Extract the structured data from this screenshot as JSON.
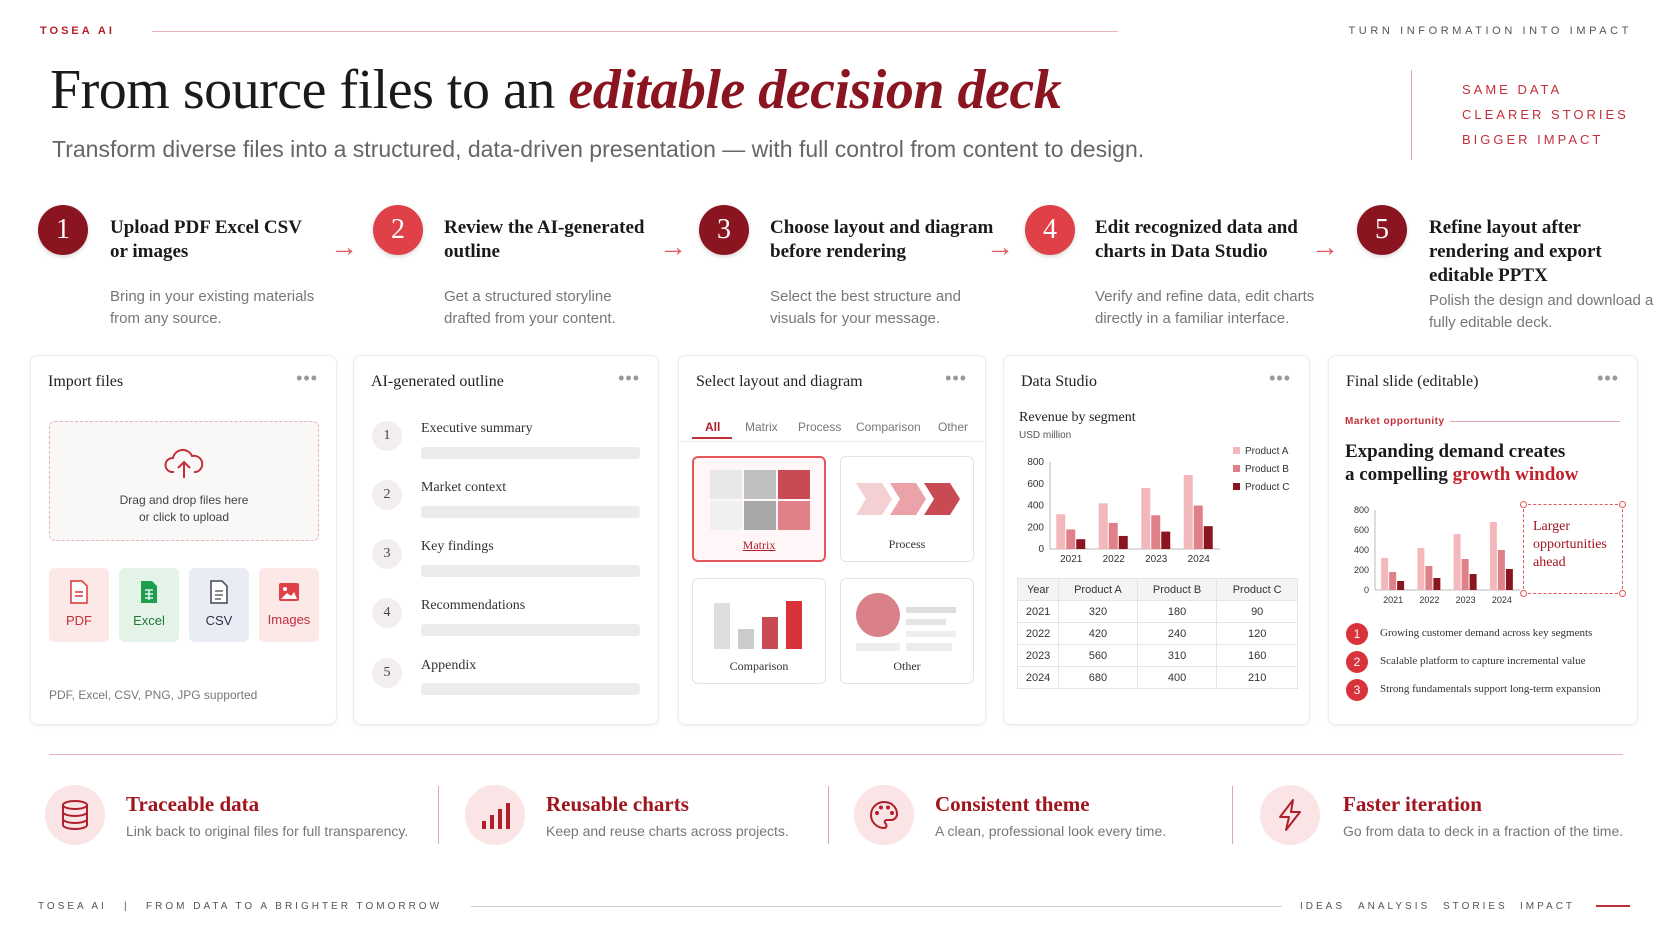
{
  "brand": "TOSEA AI",
  "top_tagline": "TURN INFORMATION INTO IMPACT",
  "title": {
    "plain": "From source files to an ",
    "highlight": "editable decision deck"
  },
  "subtitle": "Transform diverse files into a structured, data-driven presentation — with full control from content to design.",
  "taglines": [
    "SAME DATA",
    "CLEARER STORIES",
    "BIGGER IMPACT"
  ],
  "steps": [
    {
      "num": "1",
      "title": "Upload PDF Excel CSV or images",
      "desc": "Bring in your existing materials from any source."
    },
    {
      "num": "2",
      "title": "Review the AI-generated outline",
      "desc": "Get a structured storyline drafted from your content."
    },
    {
      "num": "3",
      "title": "Choose layout and diagram before rendering",
      "desc": "Select the best structure and visuals for your message."
    },
    {
      "num": "4",
      "title": "Edit recognized data and charts in Data Studio",
      "desc": "Verify and refine data, edit charts directly in a familiar interface."
    },
    {
      "num": "5",
      "title": "Refine layout  after rendering and export editable PPTX",
      "desc": "Polish the design and download a fully editable deck."
    }
  ],
  "import": {
    "title": "Import files",
    "dots": "•••",
    "drop_line1": "Drag and drop files here",
    "drop_line2": "or click to upload",
    "types": [
      "PDF",
      "Excel",
      "CSV",
      "Images"
    ],
    "supported": "PDF, Excel, CSV, PNG, JPG supported"
  },
  "outline": {
    "title": "AI-generated outline",
    "dots": "•••",
    "items": [
      {
        "num": "1",
        "label": "Executive summary"
      },
      {
        "num": "2",
        "label": "Market context"
      },
      {
        "num": "3",
        "label": "Key findings"
      },
      {
        "num": "4",
        "label": "Recommendations"
      },
      {
        "num": "5",
        "label": "Appendix"
      }
    ]
  },
  "layout": {
    "title": "Select layout and diagram",
    "dots": "•••",
    "tabs": [
      "All",
      "Matrix",
      "Process",
      "Comparison",
      "Other"
    ],
    "options": [
      "Matrix",
      "Process",
      "Comparison",
      "Other"
    ]
  },
  "studio": {
    "title": "Data Studio",
    "dots": "•••",
    "chart_title": "Revenue by segment",
    "unit": "USD million",
    "table_headers": [
      "Year",
      "Product A",
      "Product B",
      "Product C"
    ],
    "table_rows": [
      [
        "2021",
        "320",
        "180",
        "90"
      ],
      [
        "2022",
        "420",
        "240",
        "120"
      ],
      [
        "2023",
        "560",
        "310",
        "160"
      ],
      [
        "2024",
        "680",
        "400",
        "210"
      ]
    ]
  },
  "final": {
    "title": "Final slide (editable)",
    "dots": "•••",
    "kicker": "Market opportunity",
    "headline_1": "Expanding demand creates",
    "headline_2a": "a compelling ",
    "headline_2b": "growth window",
    "callout": "Larger opportunities ahead",
    "bullets": [
      {
        "num": "1",
        "text": "Growing customer demand across key segments"
      },
      {
        "num": "2",
        "text": "Scalable platform to capture incremental value"
      },
      {
        "num": "3",
        "text": "Strong fundamentals support long-term expansion"
      }
    ]
  },
  "features": [
    {
      "title": "Traceable data",
      "desc": "Link back to original files for full transparency.",
      "icon": "database-icon"
    },
    {
      "title": "Reusable charts",
      "desc": "Keep and reuse charts across projects.",
      "icon": "bar-chart-icon"
    },
    {
      "title": "Consistent theme",
      "desc": "A clean, professional look every time.",
      "icon": "palette-icon"
    },
    {
      "title": "Faster iteration",
      "desc": "Go from data to deck in a fraction of the time.",
      "icon": "lightning-icon"
    }
  ],
  "footer": {
    "left_brand": "TOSEA AI",
    "sep": "|",
    "left_slogan": "FROM DATA TO A BRIGHTER TOMORROW",
    "right": [
      "IDEAS",
      "ANALYSIS",
      "STORIES",
      "IMPACT"
    ]
  },
  "colors": {
    "accent_dark": "#8a1520",
    "accent": "#e04048",
    "light": "#f2b8bb",
    "mid": "#e08088"
  },
  "chart_data": [
    {
      "type": "bar",
      "title": "Revenue by segment",
      "ylabel": "USD million",
      "categories": [
        "2021",
        "2022",
        "2023",
        "2024"
      ],
      "series": [
        {
          "name": "Product A",
          "values": [
            320,
            420,
            560,
            680
          ]
        },
        {
          "name": "Product B",
          "values": [
            180,
            240,
            310,
            400
          ]
        },
        {
          "name": "Product C",
          "values": [
            90,
            120,
            160,
            210
          ]
        }
      ],
      "ylim": [
        0,
        800
      ],
      "yticks": [
        "0",
        "200",
        "400",
        "600",
        "800"
      ],
      "legend": "top-right"
    },
    {
      "type": "bar",
      "categories": [
        "2021",
        "2022",
        "2023",
        "2024"
      ],
      "series": [
        {
          "values": [
            320,
            420,
            560,
            680
          ]
        },
        {
          "values": [
            180,
            240,
            310,
            400
          ]
        },
        {
          "values": [
            90,
            120,
            160,
            210
          ]
        }
      ],
      "ylim": [
        0,
        800
      ],
      "yticks": [
        "0",
        "200",
        "400",
        "600",
        "800"
      ]
    }
  ]
}
